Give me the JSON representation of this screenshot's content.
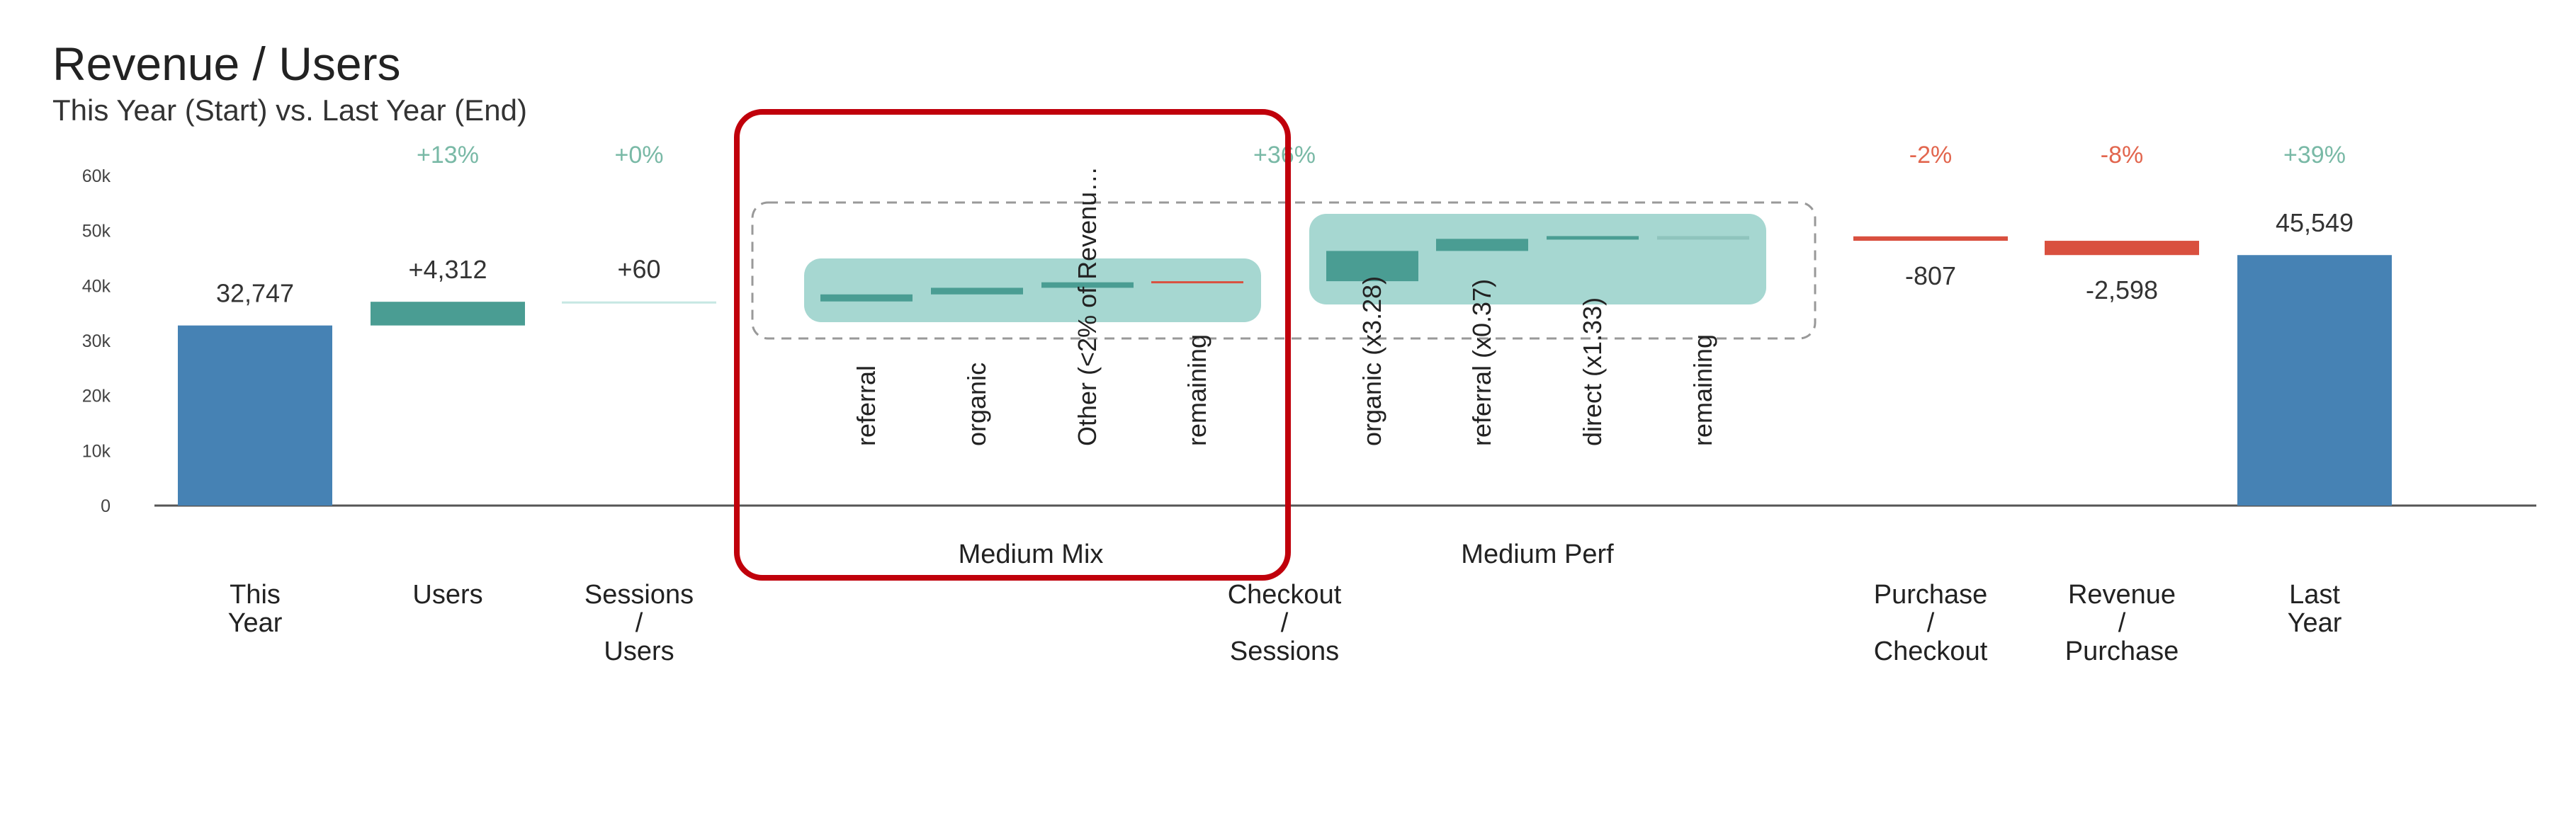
{
  "chart_data": {
    "type": "bar",
    "title": "Revenue / Users",
    "subtitle": "This Year (Start) vs. Last Year (End)",
    "ylim": [
      0,
      60000
    ],
    "y_ticks": [
      0,
      10000,
      20000,
      30000,
      40000,
      50000,
      60000
    ],
    "y_tick_labels": [
      "0",
      "10k",
      "20k",
      "30k",
      "40k",
      "50k",
      "60k"
    ],
    "grid": false,
    "categories": [
      {
        "label": [
          "This",
          "Year"
        ],
        "pct": "",
        "value_label": "32,747",
        "start": 0,
        "end": 32747,
        "kind": "total"
      },
      {
        "label": [
          "Users"
        ],
        "pct": "+13%",
        "value_label": "+4,312",
        "start": 32747,
        "end": 37059,
        "kind": "increase"
      },
      {
        "label": [
          "Sessions",
          "/",
          "Users"
        ],
        "pct": "+0%",
        "value_label": "+60",
        "start": 37059,
        "end": 37119,
        "kind": "increase"
      },
      {
        "label": [
          "Checkout",
          "/",
          "Sessions"
        ],
        "pct": "+36%",
        "value_label": "",
        "start": 37119,
        "end": 48954,
        "kind": "increase"
      },
      {
        "label": [
          "Purchase",
          "/",
          "Checkout"
        ],
        "pct": "-2%",
        "value_label": "-807",
        "start": 48954,
        "end": 48147,
        "kind": "decrease"
      },
      {
        "label": [
          "Revenue",
          "/",
          "Purchase"
        ],
        "pct": "-8%",
        "value_label": "-2,598",
        "start": 48147,
        "end": 45549,
        "kind": "decrease"
      },
      {
        "label": [
          "Last",
          "Year"
        ],
        "pct": "+39%",
        "value_label": "45,549",
        "start": 0,
        "end": 45549,
        "kind": "total"
      }
    ],
    "breakdowns": [
      {
        "name": "Medium Mix",
        "items": [
          {
            "label": "referral",
            "start": 37119,
            "end": 38400
          },
          {
            "label": "organic",
            "start": 38400,
            "end": 39600
          },
          {
            "label": "Other (<2% of Revenu…",
            "start": 39600,
            "end": 40600
          },
          {
            "label": "remaining",
            "start": 40600,
            "end": 40800
          }
        ]
      },
      {
        "name": "Medium Perf",
        "items": [
          {
            "label": "organic (x3.28)",
            "start": 40800,
            "end": 46300
          },
          {
            "label": "referral (x0.37)",
            "start": 46300,
            "end": 48500
          },
          {
            "label": "direct (x1.33)",
            "start": 48500,
            "end": 49000
          },
          {
            "label": "remaining",
            "start": 49000,
            "end": 48954
          }
        ]
      }
    ],
    "highlight": "Medium Mix"
  },
  "colors": {
    "total": "#4682b4",
    "increase": "#4a9d93",
    "increase_light": "#c6e7e3",
    "decrease": "#d9503f",
    "pct_positive": "#79b9a6",
    "pct_negative": "#e2664e",
    "breakdown_box": "#a6d7d1",
    "highlight_box": "#c0000b",
    "axis": "#444444"
  }
}
